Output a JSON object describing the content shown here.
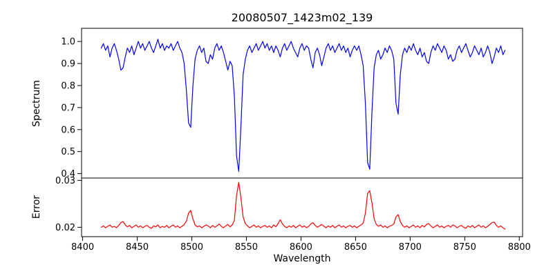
{
  "chart_data": {
    "type": "line",
    "title": "20080507_1423m02_139",
    "xlabel": "Wavelength",
    "x_start": 8417,
    "x_step": 2,
    "xlim": [
      8399,
      8803
    ],
    "xticks": [
      8400,
      8450,
      8500,
      8550,
      8600,
      8650,
      8700,
      8750,
      8800
    ],
    "grid": false,
    "legend": "none",
    "panels": [
      {
        "name": "spectrum",
        "ylabel": "Spectrum",
        "color": "#0000ff",
        "ylim": [
          0.38,
          1.06
        ],
        "yticks": [
          1.0,
          0.9,
          0.8,
          0.7,
          0.6,
          0.5,
          0.4
        ],
        "ytick_labels": [
          "1.0",
          "0.9",
          "0.8",
          "0.7",
          "0.6",
          "0.5",
          "0.4"
        ],
        "features_note": "Ca II triplet absorption lines at 8498, 8542, 8662 and Fe I 8688",
        "values": [
          0.97,
          0.99,
          0.96,
          0.98,
          0.93,
          0.97,
          0.99,
          0.96,
          0.92,
          0.87,
          0.88,
          0.93,
          0.97,
          0.95,
          0.98,
          0.94,
          0.97,
          1.0,
          0.97,
          0.99,
          0.96,
          0.98,
          1.0,
          0.97,
          0.95,
          0.98,
          1.01,
          0.97,
          0.99,
          0.96,
          0.98,
          0.97,
          0.99,
          0.96,
          0.98,
          1.0,
          0.97,
          0.95,
          0.9,
          0.78,
          0.63,
          0.61,
          0.8,
          0.92,
          0.96,
          0.98,
          0.95,
          0.97,
          0.91,
          0.9,
          0.94,
          0.92,
          0.97,
          0.99,
          0.96,
          0.98,
          0.95,
          0.91,
          0.87,
          0.91,
          0.89,
          0.75,
          0.48,
          0.41,
          0.62,
          0.85,
          0.92,
          0.96,
          0.98,
          0.95,
          0.97,
          0.99,
          0.96,
          0.98,
          1.0,
          0.97,
          0.99,
          0.96,
          0.98,
          0.95,
          0.98,
          0.96,
          0.93,
          0.97,
          0.99,
          0.96,
          0.98,
          1.0,
          0.97,
          0.95,
          0.93,
          0.97,
          0.99,
          0.96,
          0.98,
          0.97,
          0.92,
          0.88,
          0.95,
          0.97,
          0.94,
          0.89,
          0.93,
          0.97,
          0.99,
          0.96,
          0.98,
          0.95,
          0.97,
          0.99,
          0.96,
          0.98,
          0.95,
          0.97,
          0.93,
          0.96,
          0.98,
          0.96,
          0.98,
          0.94,
          0.89,
          0.72,
          0.45,
          0.42,
          0.68,
          0.88,
          0.94,
          0.96,
          0.92,
          0.94,
          0.97,
          0.95,
          0.98,
          0.96,
          0.92,
          0.72,
          0.67,
          0.85,
          0.94,
          0.97,
          0.95,
          0.98,
          0.96,
          0.99,
          0.96,
          0.94,
          0.97,
          0.93,
          0.95,
          0.91,
          0.9,
          0.95,
          0.98,
          0.96,
          0.99,
          0.97,
          0.95,
          0.98,
          0.96,
          0.92,
          0.94,
          0.91,
          0.92,
          0.96,
          0.98,
          0.95,
          0.97,
          0.99,
          0.96,
          0.93,
          0.95,
          0.98,
          0.96,
          0.94,
          0.97,
          0.93,
          0.95,
          0.98,
          0.95,
          0.9,
          0.93,
          0.97,
          0.95,
          0.98,
          0.94,
          0.96
        ]
      },
      {
        "name": "error",
        "ylabel": "Error",
        "color": "#ff0000",
        "ylim": [
          0.018,
          0.0305
        ],
        "yticks": [
          0.03,
          0.02
        ],
        "ytick_labels": [
          "0.03",
          "0.02"
        ],
        "features_note": "error peaks coincide with deep absorption lines",
        "values": [
          0.02,
          0.0203,
          0.0199,
          0.0202,
          0.0205,
          0.02,
          0.0202,
          0.0199,
          0.0204,
          0.021,
          0.0212,
          0.0205,
          0.0201,
          0.0204,
          0.0199,
          0.0202,
          0.0205,
          0.02,
          0.0203,
          0.0199,
          0.0202,
          0.0204,
          0.02,
          0.0198,
          0.0203,
          0.0201,
          0.0205,
          0.0199,
          0.0202,
          0.02,
          0.0204,
          0.0199,
          0.0202,
          0.0205,
          0.02,
          0.0203,
          0.0199,
          0.0202,
          0.0206,
          0.0213,
          0.023,
          0.0236,
          0.0218,
          0.0205,
          0.0201,
          0.0203,
          0.0199,
          0.0202,
          0.0205,
          0.0203,
          0.0199,
          0.0204,
          0.02,
          0.0203,
          0.0207,
          0.0202,
          0.0199,
          0.0203,
          0.0206,
          0.0201,
          0.0205,
          0.0215,
          0.0268,
          0.0296,
          0.0262,
          0.0222,
          0.0208,
          0.0203,
          0.0199,
          0.0202,
          0.0205,
          0.02,
          0.0203,
          0.0199,
          0.0202,
          0.0204,
          0.02,
          0.0203,
          0.0199,
          0.0205,
          0.0201,
          0.0208,
          0.0216,
          0.0207,
          0.0202,
          0.0199,
          0.0203,
          0.02,
          0.0204,
          0.0199,
          0.0202,
          0.0205,
          0.02,
          0.0203,
          0.0199,
          0.0202,
          0.0207,
          0.021,
          0.0204,
          0.02,
          0.0203,
          0.0206,
          0.0202,
          0.0199,
          0.0203,
          0.02,
          0.0204,
          0.0199,
          0.0202,
          0.0205,
          0.02,
          0.0203,
          0.0199,
          0.0202,
          0.0204,
          0.02,
          0.0203,
          0.0199,
          0.0202,
          0.0205,
          0.0209,
          0.023,
          0.0272,
          0.0278,
          0.0252,
          0.0218,
          0.0206,
          0.0202,
          0.0205,
          0.02,
          0.0203,
          0.0199,
          0.0202,
          0.0204,
          0.0207,
          0.0222,
          0.0227,
          0.0212,
          0.0204,
          0.02,
          0.0203,
          0.0199,
          0.0202,
          0.0205,
          0.02,
          0.0203,
          0.0199,
          0.0204,
          0.0201,
          0.0206,
          0.0208,
          0.0203,
          0.0199,
          0.0202,
          0.0205,
          0.02,
          0.0203,
          0.0199,
          0.0202,
          0.0204,
          0.02,
          0.0205,
          0.0203,
          0.0199,
          0.0202,
          0.0204,
          0.02,
          0.0198,
          0.0203,
          0.02,
          0.0204,
          0.0199,
          0.0202,
          0.0205,
          0.02,
          0.0203,
          0.0199,
          0.0202,
          0.0206,
          0.021,
          0.0211,
          0.0204,
          0.02,
          0.0203,
          0.0199,
          0.0196
        ]
      }
    ]
  }
}
